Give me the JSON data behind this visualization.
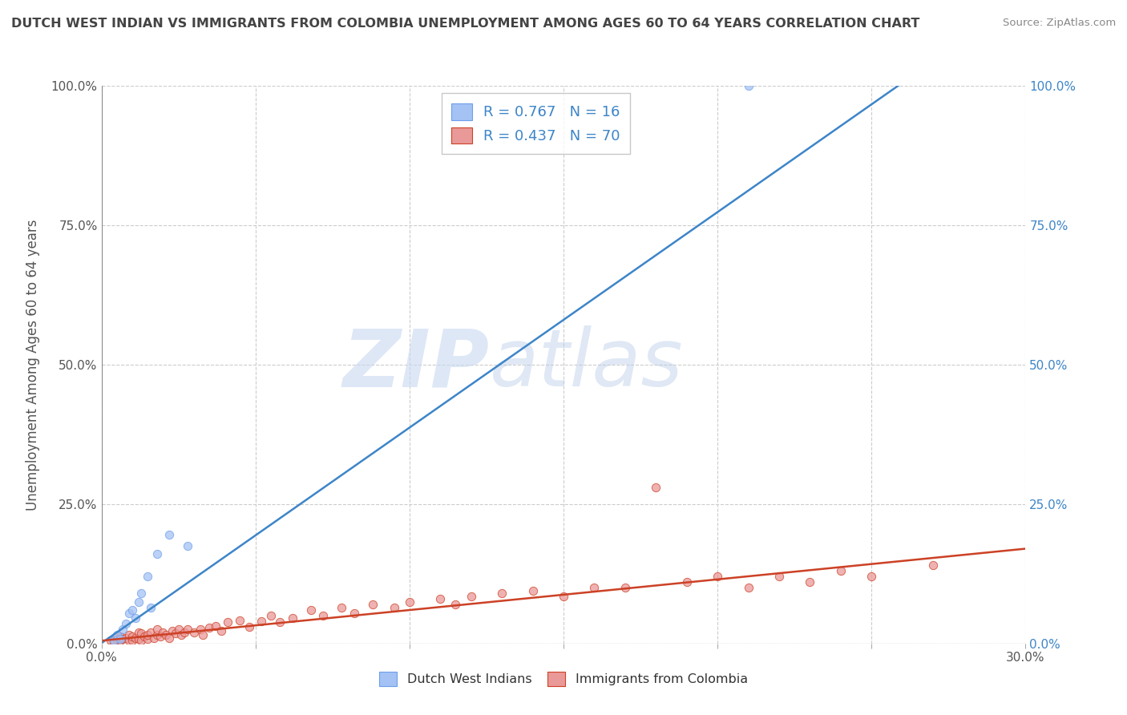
{
  "title": "DUTCH WEST INDIAN VS IMMIGRANTS FROM COLOMBIA UNEMPLOYMENT AMONG AGES 60 TO 64 YEARS CORRELATION CHART",
  "source": "Source: ZipAtlas.com",
  "ylabel": "Unemployment Among Ages 60 to 64 years",
  "xlim": [
    0.0,
    0.3
  ],
  "ylim": [
    0.0,
    1.0
  ],
  "blue_color": "#a4c2f4",
  "blue_edge_color": "#6d9eeb",
  "pink_color": "#ea9999",
  "pink_edge_color": "#cc4125",
  "blue_line_color": "#3d85c8",
  "pink_line_color": "#cc4125",
  "legend_R_blue": "R = 0.767",
  "legend_N_blue": "N = 16",
  "legend_R_pink": "R = 0.437",
  "legend_N_pink": "N = 70",
  "legend_label_blue": "Dutch West Indians",
  "legend_label_pink": "Immigrants from Colombia",
  "watermark_zip": "ZIP",
  "watermark_atlas": "atlas",
  "background_color": "#ffffff",
  "grid_color": "#cccccc",
  "title_color": "#444444",
  "axis_label_color": "#555555",
  "right_tick_color": "#3d85c8",
  "blue_scatter_x": [
    0.004,
    0.005,
    0.006,
    0.007,
    0.008,
    0.009,
    0.01,
    0.011,
    0.012,
    0.013,
    0.015,
    0.016,
    0.018,
    0.022,
    0.028,
    0.21
  ],
  "blue_scatter_y": [
    0.005,
    0.015,
    0.008,
    0.025,
    0.035,
    0.055,
    0.06,
    0.045,
    0.075,
    0.09,
    0.12,
    0.065,
    0.16,
    0.195,
    0.175,
    1.0
  ],
  "pink_scatter_x": [
    0.003,
    0.004,
    0.005,
    0.006,
    0.006,
    0.007,
    0.008,
    0.009,
    0.009,
    0.01,
    0.01,
    0.011,
    0.012,
    0.012,
    0.013,
    0.013,
    0.014,
    0.015,
    0.015,
    0.016,
    0.017,
    0.018,
    0.018,
    0.019,
    0.02,
    0.021,
    0.022,
    0.023,
    0.024,
    0.025,
    0.026,
    0.027,
    0.028,
    0.03,
    0.032,
    0.033,
    0.035,
    0.037,
    0.039,
    0.041,
    0.045,
    0.048,
    0.052,
    0.055,
    0.058,
    0.062,
    0.068,
    0.072,
    0.078,
    0.082,
    0.088,
    0.095,
    0.1,
    0.11,
    0.115,
    0.12,
    0.13,
    0.14,
    0.15,
    0.16,
    0.17,
    0.18,
    0.19,
    0.2,
    0.21,
    0.22,
    0.23,
    0.24,
    0.25,
    0.27
  ],
  "pink_scatter_y": [
    0.005,
    0.003,
    0.008,
    0.005,
    0.012,
    0.008,
    0.01,
    0.006,
    0.015,
    0.005,
    0.012,
    0.01,
    0.008,
    0.02,
    0.005,
    0.018,
    0.012,
    0.008,
    0.015,
    0.02,
    0.01,
    0.015,
    0.025,
    0.012,
    0.02,
    0.015,
    0.01,
    0.022,
    0.018,
    0.025,
    0.015,
    0.02,
    0.025,
    0.02,
    0.025,
    0.015,
    0.028,
    0.032,
    0.022,
    0.038,
    0.042,
    0.03,
    0.04,
    0.05,
    0.038,
    0.045,
    0.06,
    0.05,
    0.065,
    0.055,
    0.07,
    0.065,
    0.075,
    0.08,
    0.07,
    0.085,
    0.09,
    0.095,
    0.085,
    0.1,
    0.1,
    0.28,
    0.11,
    0.12,
    0.1,
    0.12,
    0.11,
    0.13,
    0.12,
    0.14
  ],
  "blue_line_x": [
    -0.01,
    0.3
  ],
  "blue_line_y": [
    -0.038,
    1.16
  ],
  "pink_line_x": [
    0.0,
    0.3
  ],
  "pink_line_y": [
    0.005,
    0.17
  ],
  "yticks": [
    0.0,
    0.25,
    0.5,
    0.75,
    1.0
  ],
  "xticks": [
    0.0,
    0.05,
    0.1,
    0.15,
    0.2,
    0.25,
    0.3
  ],
  "scatter_size": 55,
  "scatter_alpha": 0.75
}
